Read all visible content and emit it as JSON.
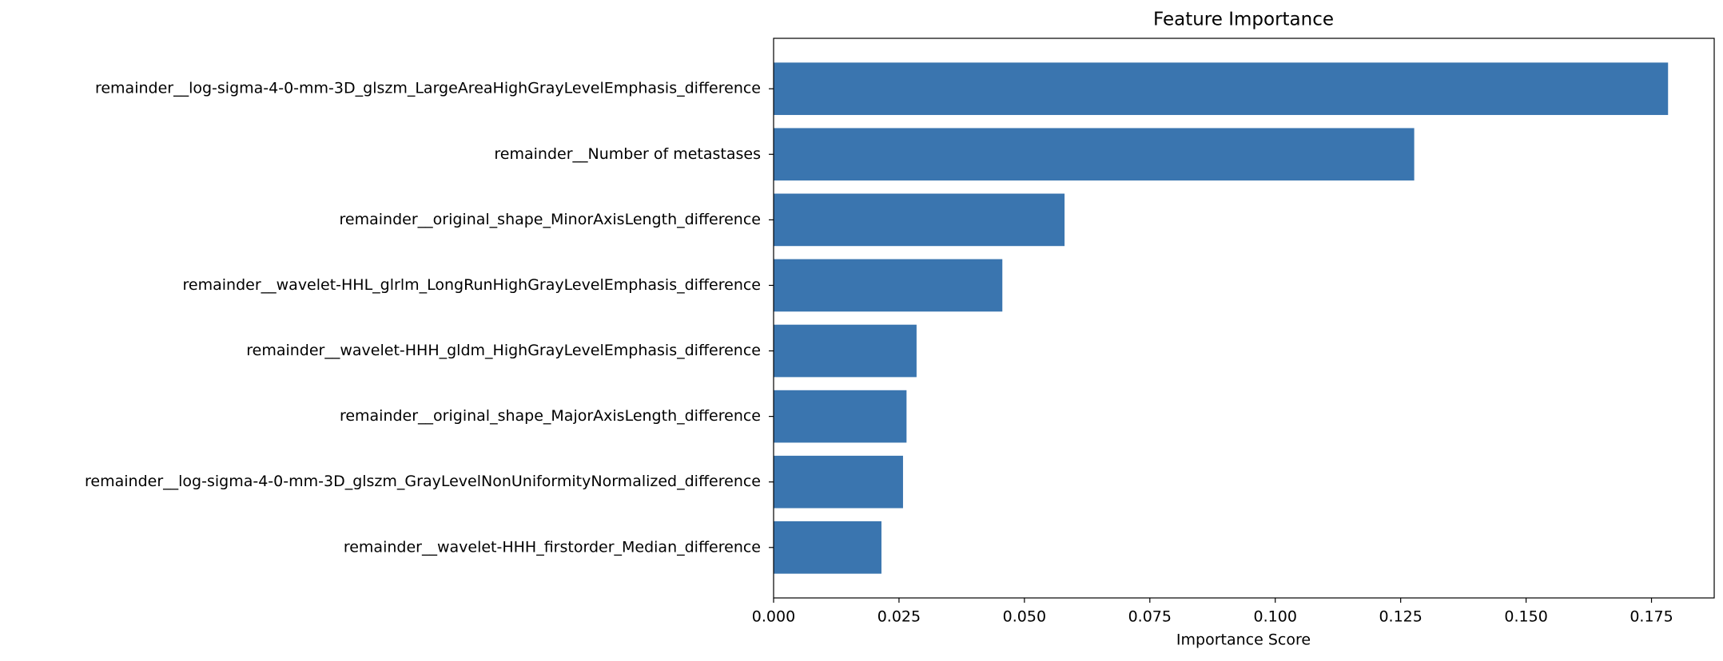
{
  "chart_data": {
    "type": "barh",
    "title": "Feature Importance",
    "x_label": "Importance Score",
    "categories": [
      "remainder__log-sigma-4-0-mm-3D_glszm_LargeAreaHighGrayLevelEmphasis_difference",
      "remainder__Number of metastases",
      "remainder__original_shape_MinorAxisLength_difference",
      "remainder__wavelet-HHL_glrlm_LongRunHighGrayLevelEmphasis_difference",
      "remainder__wavelet-HHH_gldm_HighGrayLevelEmphasis_difference",
      "remainder__original_shape_MajorAxisLength_difference",
      "remainder__log-sigma-4-0-mm-3D_glszm_GrayLevelNonUniformityNormalized_difference",
      "remainder__wavelet-HHH_firstorder_Median_difference"
    ],
    "values": [
      0.1783,
      0.1277,
      0.058,
      0.0456,
      0.0285,
      0.0265,
      0.0258,
      0.0215
    ],
    "color": "#3a75af",
    "xlim": [
      0,
      0.1875
    ],
    "xticks": [
      {
        "value": 0,
        "label": "0.000"
      },
      {
        "value": 0.025,
        "label": "0.025"
      },
      {
        "value": 0.05,
        "label": "0.050"
      },
      {
        "value": 0.075,
        "label": "0.075"
      },
      {
        "value": 0.1,
        "label": "0.100"
      },
      {
        "value": 0.125,
        "label": "0.125"
      },
      {
        "value": 0.15,
        "label": "0.150"
      },
      {
        "value": 0.175,
        "label": "0.175"
      }
    ]
  }
}
